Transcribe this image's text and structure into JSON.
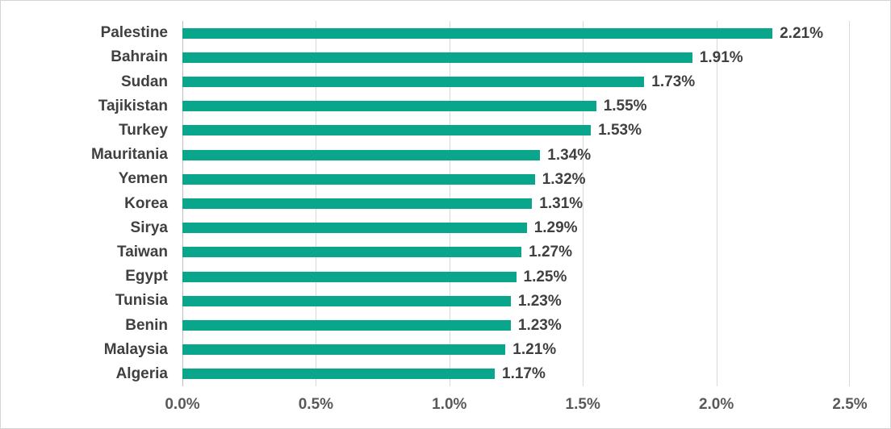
{
  "chart_data": {
    "type": "bar",
    "orientation": "horizontal",
    "title": "",
    "xlabel": "",
    "ylabel": "",
    "legend": "none",
    "grid": "vertical-gridlines",
    "xlim": [
      0,
      2.5
    ],
    "categories": [
      "Palestine",
      "Bahrain",
      "Sudan",
      "Tajikistan",
      "Turkey",
      "Mauritania",
      "Yemen",
      "Korea",
      "Sirya",
      "Taiwan",
      "Egypt",
      "Tunisia",
      "Benin",
      "Malaysia",
      "Algeria"
    ],
    "values": [
      2.21,
      1.91,
      1.73,
      1.55,
      1.53,
      1.34,
      1.32,
      1.31,
      1.29,
      1.27,
      1.25,
      1.23,
      1.23,
      1.21,
      1.17
    ],
    "value_labels": [
      "2.21%",
      "1.91%",
      "1.73%",
      "1.55%",
      "1.53%",
      "1.34%",
      "1.32%",
      "1.31%",
      "1.29%",
      "1.27%",
      "1.25%",
      "1.23%",
      "1.23%",
      "1.21%",
      "1.17%"
    ],
    "x_ticks": [
      "0.0%",
      "0.5%",
      "1.0%",
      "1.5%",
      "2.0%",
      "2.5%"
    ],
    "x_tick_values": [
      0,
      0.5,
      1.0,
      1.5,
      2.0,
      2.5
    ],
    "colors": {
      "bar": "#0aa68b",
      "gridline": "#d9d9d9",
      "axis_line": "#bfbfbf",
      "category_label": "#404040",
      "value_label": "#404040",
      "tick_label": "#595959",
      "background": "#ffffff",
      "border": "#d4d4d4"
    }
  }
}
